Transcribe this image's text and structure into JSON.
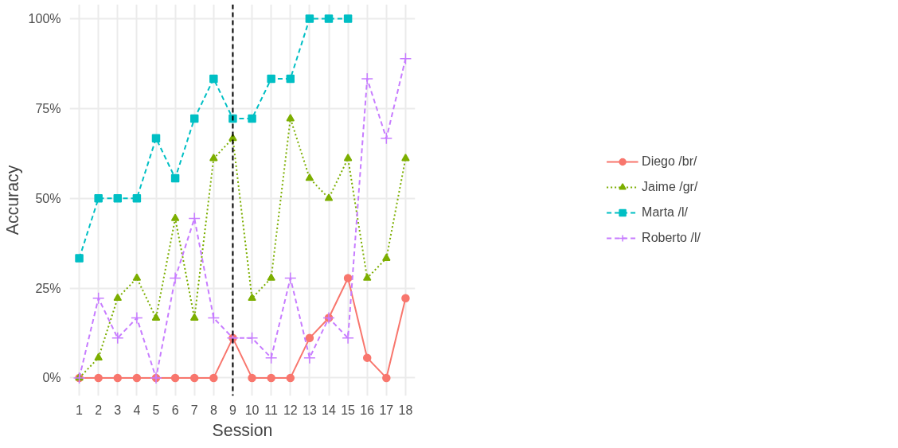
{
  "chart_data": {
    "type": "line",
    "xlabel": "Session",
    "ylabel": "Accuracy",
    "x": [
      1,
      2,
      3,
      4,
      5,
      6,
      7,
      8,
      9,
      10,
      11,
      12,
      13,
      14,
      15,
      16,
      17,
      18
    ],
    "xlim": [
      0.5,
      18.5
    ],
    "xticks": [
      1,
      2,
      3,
      4,
      5,
      6,
      7,
      8,
      9,
      10,
      11,
      12,
      13,
      14,
      15,
      16,
      17,
      18
    ],
    "ylim": [
      -5,
      104
    ],
    "yticks": [
      {
        "value": 0,
        "label": "0%"
      },
      {
        "value": 25,
        "label": "25%"
      },
      {
        "value": 50,
        "label": "50%"
      },
      {
        "value": 75,
        "label": "75%"
      },
      {
        "value": 100,
        "label": "100%"
      }
    ],
    "grid": true,
    "legend": "right",
    "ref_lines": [
      {
        "axis": "x",
        "value": 9,
        "label": null,
        "color": "#000000",
        "line_style": "dashed"
      }
    ],
    "series": [
      {
        "name": "Diego /br/",
        "color": "#f8766d",
        "marker": "circle",
        "line_style": "solid",
        "values": [
          0,
          0,
          0,
          0,
          0,
          0,
          0,
          0,
          11.1,
          0,
          0,
          0,
          11.1,
          16.7,
          27.8,
          5.6,
          0,
          22.2
        ]
      },
      {
        "name": "Jaime /gr/",
        "color": "#7cae00",
        "marker": "triangle",
        "line_style": "dotted",
        "values": [
          0,
          5.6,
          22.2,
          27.8,
          16.7,
          44.4,
          16.7,
          61.1,
          66.7,
          22.2,
          27.8,
          72.2,
          55.6,
          50,
          61.1,
          27.8,
          33.3,
          61.1
        ]
      },
      {
        "name": "Marta /l/",
        "color": "#00bfc4",
        "marker": "square",
        "line_style": "dashed",
        "values": [
          33.3,
          50,
          50,
          50,
          66.7,
          55.6,
          72.2,
          83.3,
          72.2,
          72.2,
          83.3,
          83.3,
          100,
          100,
          100,
          null,
          null,
          null
        ]
      },
      {
        "name": "Roberto /l/",
        "color": "#c77cff",
        "marker": "cross",
        "line_style": "dashed",
        "values": [
          0,
          22.2,
          11.1,
          16.7,
          0,
          27.8,
          44.4,
          16.7,
          11.1,
          11.1,
          5.6,
          27.8,
          5.6,
          16.7,
          11.1,
          83.3,
          66.7,
          88.9
        ]
      }
    ]
  }
}
